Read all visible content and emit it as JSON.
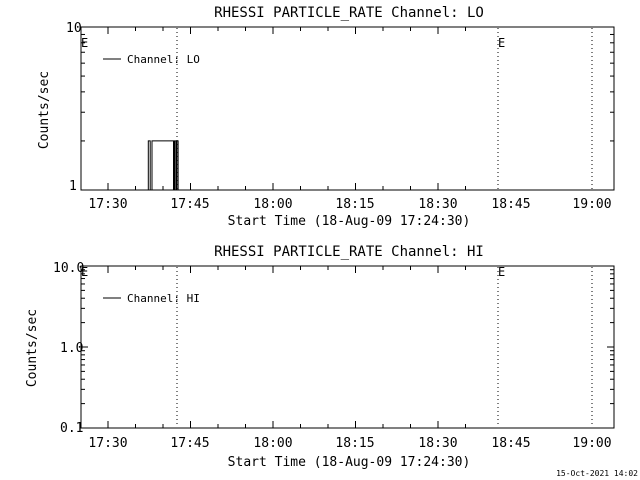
{
  "plots": [
    {
      "title": "RHESSI PARTICLE_RATE Channel: LO",
      "xlabel": "Start Time (18-Aug-09 17:24:30)",
      "ylabel": "Counts/sec",
      "legend": "Channel: LO",
      "event_marker_label": "E",
      "ytick_labels": [
        "1",
        "10"
      ],
      "xtick_labels": [
        "17:30",
        "17:45",
        "18:00",
        "18:15",
        "18:30",
        "18:45",
        "19:00"
      ]
    },
    {
      "title": "RHESSI PARTICLE_RATE Channel: HI",
      "xlabel": "Start Time (18-Aug-09 17:24:30)",
      "ylabel": "Counts/sec",
      "legend": "Channel: HI",
      "event_marker_label": "E",
      "ytick_labels": [
        "0.1",
        "1.0",
        "10.0"
      ],
      "xtick_labels": [
        "17:30",
        "17:45",
        "18:00",
        "18:15",
        "18:30",
        "18:45",
        "19:00"
      ]
    }
  ],
  "footer": {
    "timestamp": "15-Oct-2021 14:02"
  },
  "chart_data": [
    {
      "type": "line",
      "title": "RHESSI PARTICLE_RATE Channel: LO",
      "xlabel": "Start Time (18-Aug-09 17:24:30)",
      "ylabel": "Counts/sec",
      "yscale": "log",
      "ylim": [
        1,
        10
      ],
      "xlim_minutes": [
        17.4,
        19.1
      ],
      "x_ticks": [
        "17:30",
        "17:45",
        "18:00",
        "18:15",
        "18:30",
        "18:45",
        "19:00"
      ],
      "legend_position": "top-left",
      "series": [
        {
          "name": "Channel: LO",
          "x": [
            "17:37:10",
            "17:37:20",
            "17:37:40",
            "17:38:00",
            "17:41:40",
            "17:41:55",
            "17:42:05",
            "17:42:20",
            "17:42:30",
            "17:42:45",
            "17:43:00"
          ],
          "y": [
            1,
            2,
            1,
            2,
            2,
            1,
            2,
            1,
            2,
            1,
            1
          ]
        }
      ],
      "vertical_dotted_lines": [
        "17:43",
        "18:43",
        "19:00"
      ],
      "event_markers": [
        "17:25",
        "18:42"
      ]
    },
    {
      "type": "line",
      "title": "RHESSI PARTICLE_RATE Channel: HI",
      "xlabel": "Start Time (18-Aug-09 17:24:30)",
      "ylabel": "Counts/sec",
      "yscale": "log",
      "ylim": [
        0.1,
        10
      ],
      "x_ticks": [
        "17:30",
        "17:45",
        "18:00",
        "18:15",
        "18:30",
        "18:45",
        "19:00"
      ],
      "legend_position": "top-left",
      "series": [
        {
          "name": "Channel: HI",
          "x": [],
          "y": []
        }
      ],
      "vertical_dotted_lines": [
        "17:43",
        "18:43",
        "19:00"
      ],
      "event_markers": [
        "17:25",
        "18:42"
      ]
    }
  ]
}
